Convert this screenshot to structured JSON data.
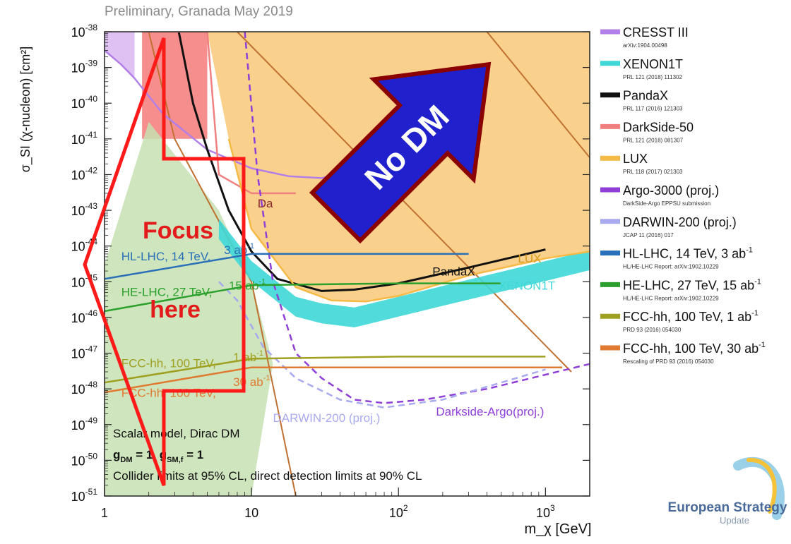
{
  "chart_data": {
    "type": "line",
    "title": "Preliminary, Granada May 2019",
    "xlabel": "m_χ [GeV]",
    "ylabel": "σ_SI (χ-nucleon) [cm²]",
    "x_scale": "log",
    "y_scale": "log",
    "xlim": [
      1,
      2000
    ],
    "ylim": [
      1e-51,
      1e-38
    ],
    "x_ticks": [
      {
        "v": 1,
        "base": "1",
        "exp": ""
      },
      {
        "v": 10,
        "base": "10",
        "exp": ""
      },
      {
        "v": 100,
        "base": "10",
        "exp": "2"
      },
      {
        "v": 1000,
        "base": "10",
        "exp": "3"
      }
    ],
    "y_ticks": [
      {
        "v": 1e-38,
        "exp": "-38"
      },
      {
        "v": 1e-39,
        "exp": "-39"
      },
      {
        "v": 1e-40,
        "exp": "-40"
      },
      {
        "v": 1e-41,
        "exp": "-41"
      },
      {
        "v": 1e-42,
        "exp": "-42"
      },
      {
        "v": 1e-43,
        "exp": "-43"
      },
      {
        "v": 1e-44,
        "exp": "-44"
      },
      {
        "v": 1e-45,
        "exp": "-45"
      },
      {
        "v": 1e-46,
        "exp": "-46"
      },
      {
        "v": 1e-47,
        "exp": "-47"
      },
      {
        "v": 1e-48,
        "exp": "-48"
      },
      {
        "v": 1e-49,
        "exp": "-49"
      },
      {
        "v": 1e-50,
        "exp": "-50"
      },
      {
        "v": 1e-51,
        "exp": "-51"
      }
    ],
    "series": [
      {
        "name": "CRESST III",
        "ref": "arXiv:1904.00498",
        "color": "#b27fe8",
        "style": "solid",
        "points": [
          [
            1,
            3e-39
          ],
          [
            1.3,
            1.2e-39
          ],
          [
            1.6,
            5e-40
          ],
          [
            2.5,
            5e-41
          ],
          [
            5,
            5e-42
          ],
          [
            10,
            1.5e-42
          ],
          [
            18,
            9e-43
          ],
          [
            30,
            8e-43
          ],
          [
            55,
            1.5e-42
          ]
        ]
      },
      {
        "name": "XENON1T",
        "ref": "PRL 121 (2018) 111302",
        "color": "#3fd7d7",
        "style": "band",
        "points": [
          [
            6,
            3e-44
          ],
          [
            10,
            2e-45
          ],
          [
            20,
            2e-46
          ],
          [
            30,
            1.3e-46
          ],
          [
            50,
            1e-46
          ],
          [
            100,
            2e-46
          ],
          [
            300,
            6e-46
          ],
          [
            1000,
            2e-45
          ],
          [
            2000,
            4e-45
          ]
        ]
      },
      {
        "name": "PandaX",
        "ref": "PRL 117 (2016) 121303",
        "color": "#111111",
        "style": "solid",
        "points": [
          [
            3.2,
            1e-38
          ],
          [
            4,
            1e-40
          ],
          [
            5,
            5e-42
          ],
          [
            7,
            1e-43
          ],
          [
            10,
            7e-45
          ],
          [
            15,
            1.2e-45
          ],
          [
            30,
            5.5e-46
          ],
          [
            50,
            6e-46
          ],
          [
            100,
            9e-46
          ],
          [
            300,
            2.5e-45
          ],
          [
            1000,
            8e-45
          ]
        ]
      },
      {
        "name": "DarkSide-50",
        "ref": "PRL 121 (2018) 081307",
        "color": "#f08080",
        "style": "solid",
        "points": [
          [
            1.8,
            1e-38
          ],
          [
            5,
            1e-38
          ],
          [
            6,
            1e-42
          ],
          [
            10,
            3e-43
          ],
          [
            20,
            3e-43
          ]
        ]
      },
      {
        "name": "LUX",
        "ref": "PRL 118 (2017) 021303",
        "color": "#f5b945",
        "style": "solid",
        "points": [
          [
            7,
            1e-41
          ],
          [
            10,
            3e-44
          ],
          [
            20,
            7e-46
          ],
          [
            35,
            3e-46
          ],
          [
            60,
            2.8e-46
          ],
          [
            100,
            4e-46
          ],
          [
            300,
            1.5e-45
          ],
          [
            1000,
            4.5e-45
          ],
          [
            2000,
            7e-45
          ]
        ]
      },
      {
        "name": "Argo-3000 (proj.)",
        "ref": "DarkSide-Argo EPPSU submission",
        "color": "#8f3fd7",
        "style": "dashed",
        "points": [
          [
            9,
            1e-38
          ],
          [
            11,
            1e-42
          ],
          [
            14,
            1e-45
          ],
          [
            20,
            1e-47
          ],
          [
            30,
            2e-48
          ],
          [
            50,
            5e-49
          ],
          [
            80,
            4e-49
          ],
          [
            150,
            5e-49
          ],
          [
            400,
            1e-48
          ],
          [
            1000,
            2.5e-48
          ],
          [
            2000,
            5e-48
          ]
        ]
      },
      {
        "name": "DARWIN-200 (proj.)",
        "ref": "JCAP 11 (2016) 017",
        "color": "#a9a9ef",
        "style": "dashed",
        "points": [
          [
            6,
            1e-45
          ],
          [
            8,
            3e-46
          ],
          [
            12,
            1.5e-47
          ],
          [
            20,
            2e-48
          ],
          [
            40,
            5e-49
          ],
          [
            80,
            3e-49
          ],
          [
            200,
            5e-49
          ],
          [
            500,
            1.5e-48
          ],
          [
            1000,
            3.5e-48
          ]
        ]
      },
      {
        "name": "HL-LHC, 14 TeV,  3 ab",
        "unit_exp": "-1",
        "ref": "HL/HE-LHC Report: arXiv:1902.10229",
        "color": "#2a70b8",
        "style": "solid",
        "points": [
          [
            1,
            1.2e-45
          ],
          [
            10,
            6e-45
          ],
          [
            100,
            6e-45
          ],
          [
            300,
            6e-45
          ]
        ]
      },
      {
        "name": "HE-LHC, 27 TeV,  15 ab",
        "unit_exp": "-1",
        "ref": "HL/HE-LHC Report: arXiv:1902.10229",
        "color": "#2ca02c",
        "style": "solid",
        "points": [
          [
            1,
            1.5e-46
          ],
          [
            10,
            8e-46
          ],
          [
            100,
            9e-46
          ],
          [
            500,
            9e-46
          ]
        ]
      },
      {
        "name": "FCC-hh, 100 TeV,  1 ab",
        "unit_exp": "-1",
        "ref": "PRD 93 (2016) 054030",
        "color": "#a0a020",
        "style": "solid",
        "points": [
          [
            1,
            1.5e-48
          ],
          [
            10,
            7e-48
          ],
          [
            100,
            8e-48
          ],
          [
            1000,
            8e-48
          ]
        ]
      },
      {
        "name": "FCC-hh, 100 TeV,  30 ab",
        "unit_exp": "-1",
        "ref": "Rescaling of PRD 93 (2016) 054030",
        "color": "#e07a30",
        "style": "solid",
        "points": [
          [
            1,
            8e-49
          ],
          [
            10,
            4e-48
          ],
          [
            100,
            4e-48
          ],
          [
            1000,
            4e-48
          ],
          [
            1300,
            4e-48
          ]
        ]
      }
    ],
    "shaded_regions": [
      {
        "name": "LUX excluded",
        "color": "#f9c978",
        "polygon": [
          [
            4,
            1e-38
          ],
          [
            2000,
            1e-38
          ],
          [
            2000,
            7e-45
          ],
          [
            1000,
            4.5e-45
          ],
          [
            300,
            1.5e-45
          ],
          [
            100,
            4e-46
          ],
          [
            60,
            2.8e-46
          ],
          [
            35,
            3e-46
          ],
          [
            20,
            7e-46
          ],
          [
            10,
            3e-44
          ],
          [
            7,
            1e-41
          ],
          [
            5,
            1e-38
          ]
        ]
      },
      {
        "name": "DarkSide-50 excluded",
        "color": "#f47a7a",
        "polygon": [
          [
            1.8,
            1e-38
          ],
          [
            5,
            1e-38
          ],
          [
            5,
            1e-41
          ],
          [
            1.8,
            1e-41
          ]
        ]
      },
      {
        "name": "CRESST III excluded",
        "color": "#d9b6f2",
        "polygon": [
          [
            1,
            1e-38
          ],
          [
            1.6,
            1e-38
          ],
          [
            1.6,
            5e-40
          ],
          [
            1.3,
            1.2e-39
          ],
          [
            1,
            3e-39
          ]
        ]
      },
      {
        "name": "Collider region",
        "color": "#c6e0b2",
        "polygon": [
          [
            1,
            3e-45
          ],
          [
            2,
            3e-41
          ],
          [
            6,
            1e-43
          ],
          [
            10,
            1e-45
          ],
          [
            14,
            5e-48
          ],
          [
            10,
            1e-51
          ],
          [
            1,
            1e-51
          ]
        ]
      }
    ],
    "mesh_lines": [
      {
        "color": "#c07030",
        "points": [
          [
            8,
            1e-38
          ],
          [
            1500,
            3e-48
          ]
        ]
      },
      {
        "color": "#c07030",
        "points": [
          [
            2,
            1e-38
          ],
          [
            3,
            1e-41
          ],
          [
            10,
            1e-45
          ],
          [
            20,
            1e-51
          ]
        ]
      },
      {
        "color": "#c07030",
        "points": [
          [
            400,
            1e-38
          ],
          [
            2000,
            3e-42
          ]
        ]
      }
    ],
    "curve_labels": [
      {
        "text": "Da",
        "x": 11,
        "y": 1.2e-43,
        "color": "#8b2a2a"
      },
      {
        "text": "PandaX",
        "x": 170,
        "y": 1.5e-45,
        "color": "#111111"
      },
      {
        "text": "LUX",
        "x": 650,
        "y": 3.5e-45,
        "color": "#d79a20"
      },
      {
        "text": "XENON1T",
        "x": 480,
        "y": 6e-46,
        "color": "#3fd7d7"
      },
      {
        "text": "HL-LHC, 14 TeV,",
        "x": 1.3,
        "y": 4e-45,
        "color": "#2a70b8"
      },
      {
        "text": "3 ab",
        "exp": "-1",
        "x": 6.5,
        "y": 6e-45,
        "color": "#2a70b8"
      },
      {
        "text": "HE-LHC, 27 TeV,",
        "x": 1.3,
        "y": 4e-46,
        "color": "#2ca02c"
      },
      {
        "text": "15 ab",
        "exp": "-1",
        "x": 7,
        "y": 6e-46,
        "color": "#2ca02c"
      },
      {
        "text": "FCC-hh, 100 TeV,",
        "x": 1.3,
        "y": 4e-48,
        "color": "#a0a020"
      },
      {
        "text": "1 ab",
        "exp": "-1",
        "x": 7.5,
        "y": 6e-48,
        "color": "#a0a020"
      },
      {
        "text": "FCC-hh, 100 TeV,",
        "x": 1.3,
        "y": 6e-49,
        "color": "#e07a30"
      },
      {
        "text": "30 ab",
        "exp": "-1",
        "x": 7.5,
        "y": 1.2e-48,
        "color": "#e07a30"
      },
      {
        "text": "DARWIN-200 (proj.)",
        "x": 14,
        "y": 1.2e-49,
        "color": "#a9a9ef"
      },
      {
        "text": "Darkside-Argo(proj.)",
        "x": 180,
        "y": 1.8e-49,
        "color": "#8f3fd7"
      }
    ],
    "annotations": {
      "model": "Scalar model, Dirac DM",
      "couplings": {
        "g1": "g",
        "s1": "DM",
        "mid": " = 1, ",
        "g2": "g",
        "s2": "SM,f",
        "end": " = 1"
      },
      "cl_note": "Collider limits at 95% CL, direct detection limits at 90% CL",
      "focus_line1": "Focus",
      "focus_line2": "here",
      "no_dm": "No DM"
    },
    "logo": {
      "line1": "European Strategy",
      "line2": "Update"
    }
  }
}
